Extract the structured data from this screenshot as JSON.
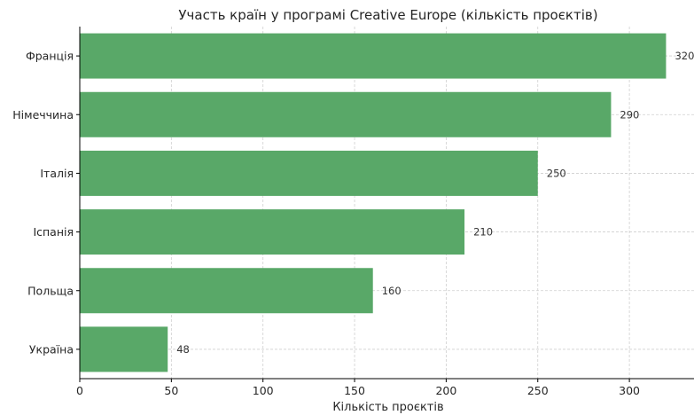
{
  "chart_data": {
    "type": "bar",
    "orientation": "horizontal",
    "title": "Участь країн у програмі Creative Europe (кількість проєктів)",
    "xlabel": "Кількість проєктів",
    "ylabel": "",
    "categories": [
      "Україна",
      "Польща",
      "Іспанія",
      "Італія",
      "Німеччина",
      "Франція"
    ],
    "values": [
      48,
      160,
      210,
      250,
      290,
      320
    ],
    "data_labels": [
      "48",
      "160",
      "210",
      "250",
      "290",
      "320"
    ],
    "xlim": [
      0,
      335
    ],
    "xticks": [
      0,
      50,
      100,
      150,
      200,
      250,
      300
    ],
    "xtick_labels": [
      "0",
      "50",
      "100",
      "150",
      "200",
      "250",
      "300"
    ],
    "grid": true,
    "bar_color": "#59a868"
  }
}
